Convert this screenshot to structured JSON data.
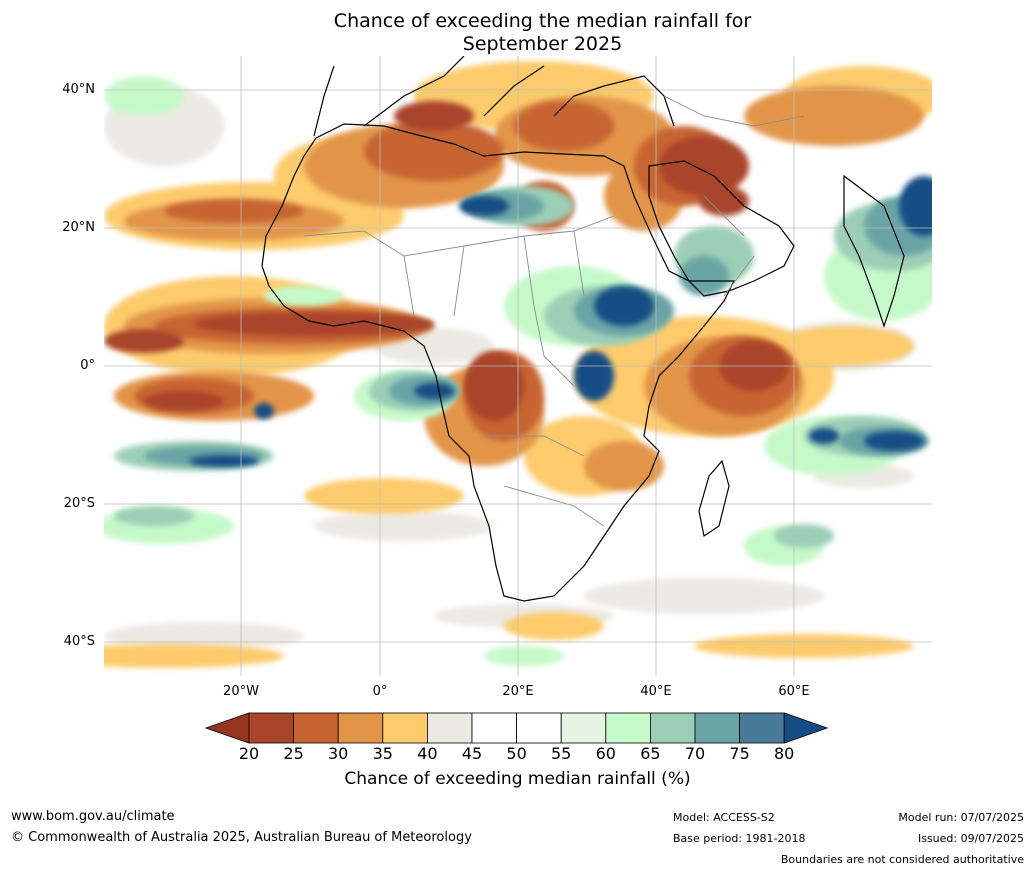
{
  "title_line1": "Chance of exceeding the median rainfall for",
  "title_line2": "September 2025",
  "lat_labels": [
    "40°N",
    "20°N",
    "0°",
    "20°S",
    "40°S"
  ],
  "lon_labels": [
    "20°W",
    "0°",
    "20°E",
    "40°E",
    "60°E"
  ],
  "colorbar": {
    "ticks": [
      "20",
      "25",
      "30",
      "35",
      "40",
      "45",
      "50",
      "55",
      "60",
      "65",
      "70",
      "75",
      "80"
    ],
    "colors": {
      "under": "#973520",
      "bins": [
        "#a9452a",
        "#c66532",
        "#e29549",
        "#fdcb6c",
        "#ece9e4",
        "#ffffff",
        "#ffffff",
        "#e5f5e3",
        "#c6f9c9",
        "#9ccfb6",
        "#6ba4a6",
        "#487a97"
      ],
      "over": "#144e85"
    },
    "label": "Chance of exceeding median rainfall (%)"
  },
  "map_colors": {
    "land_outline": "#000000",
    "borders": "#8c8c8c",
    "grid": "#bdbdbd"
  },
  "footer": {
    "website": "www.bom.gov.au/climate",
    "copyright": "© Commonwealth of Australia 2025, Australian Bureau of Meteorology",
    "model": "Model: ACCESS-S2",
    "base_period": "Base period: 1981-2018",
    "model_run": "Model run: 07/07/2025",
    "issued": "Issued: 09/07/2025",
    "disclaimer": "Boundaries are not considered authoritative"
  }
}
